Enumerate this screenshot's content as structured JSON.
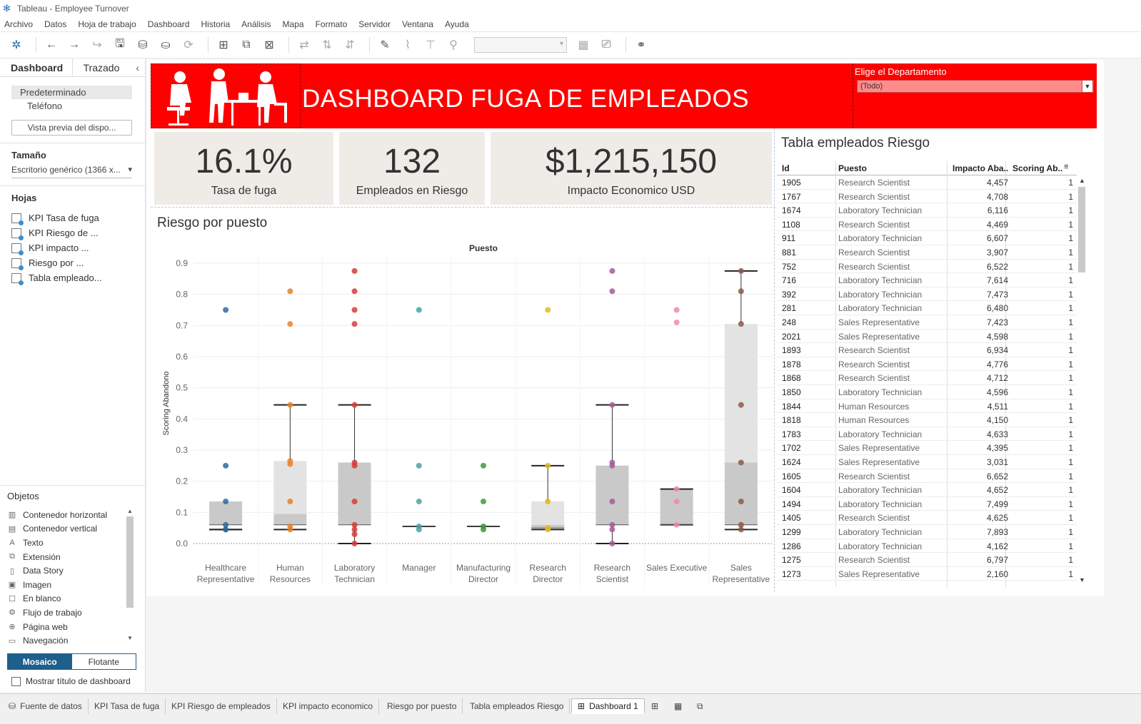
{
  "window": {
    "title": "Tableau - Employee Turnover"
  },
  "menu": [
    "Archivo",
    "Datos",
    "Hoja de trabajo",
    "Dashboard",
    "Historia",
    "Análisis",
    "Mapa",
    "Formato",
    "Servidor",
    "Ventana",
    "Ayuda"
  ],
  "left_panel": {
    "tabs": [
      "Dashboard",
      "Trazado"
    ],
    "devices": [
      "Predeterminado",
      "Teléfono"
    ],
    "preview_button": "Vista previa del dispo...",
    "size_title": "Tamaño",
    "size_value": "Escritorio genérico (1366 x...",
    "sheets_title": "Hojas",
    "sheets": [
      "KPI Tasa de fuga",
      "KPI Riesgo de ...",
      "KPI impacto ...",
      "Riesgo por ...",
      "Tabla empleado..."
    ],
    "objects_title": "Objetos",
    "objects": [
      {
        "label": "Contenedor horizontal",
        "icon": "horizontal-container-icon",
        "glyph": "▥"
      },
      {
        "label": "Contenedor vertical",
        "icon": "vertical-container-icon",
        "glyph": "▤"
      },
      {
        "label": "Texto",
        "icon": "text-icon",
        "glyph": "A"
      },
      {
        "label": "Extensión",
        "icon": "extension-icon",
        "glyph": "⧉"
      },
      {
        "label": "Data Story",
        "icon": "data-story-icon",
        "glyph": "▯"
      },
      {
        "label": "Imagen",
        "icon": "image-icon",
        "glyph": "▣"
      },
      {
        "label": "En blanco",
        "icon": "blank-icon",
        "glyph": "☐"
      },
      {
        "label": "Flujo de trabajo",
        "icon": "workflow-icon",
        "glyph": "⚙"
      },
      {
        "label": "Página web",
        "icon": "web-page-icon",
        "glyph": "⊕"
      },
      {
        "label": "Navegación",
        "icon": "navigation-icon",
        "glyph": "▭"
      }
    ],
    "layout_modes": [
      "Mosaico",
      "Flotante"
    ],
    "show_title_label": "Mostrar título de dashboard"
  },
  "dashboard": {
    "banner_title": "DASHBOARD FUGA DE EMPLEADOS",
    "filter_label": "Elige el Departamento",
    "filter_value": "(Todo)",
    "kpis": [
      {
        "value": "16.1%",
        "label": "Tasa de fuga"
      },
      {
        "value": "132",
        "label": "Empleados en Riesgo"
      },
      {
        "value": "$1,215,150",
        "label": "Impacto Economico USD"
      }
    ],
    "chart_title": "Riesgo por puesto",
    "table_title": "Tabla empleados Riesgo",
    "table_headers": [
      "Id",
      "Puesto",
      "Impacto Aba..",
      "Scoring Ab.."
    ],
    "table_rows": [
      [
        "1905",
        "Research Scientist",
        "4,457",
        "1"
      ],
      [
        "1767",
        "Research Scientist",
        "4,708",
        "1"
      ],
      [
        "1674",
        "Laboratory Technician",
        "6,116",
        "1"
      ],
      [
        "1108",
        "Research Scientist",
        "4,469",
        "1"
      ],
      [
        "911",
        "Laboratory Technician",
        "6,607",
        "1"
      ],
      [
        "881",
        "Research Scientist",
        "3,907",
        "1"
      ],
      [
        "752",
        "Research Scientist",
        "6,522",
        "1"
      ],
      [
        "716",
        "Laboratory Technician",
        "7,614",
        "1"
      ],
      [
        "392",
        "Laboratory Technician",
        "7,473",
        "1"
      ],
      [
        "281",
        "Laboratory Technician",
        "6,480",
        "1"
      ],
      [
        "248",
        "Sales Representative",
        "7,423",
        "1"
      ],
      [
        "2021",
        "Sales Representative",
        "4,598",
        "1"
      ],
      [
        "1893",
        "Research Scientist",
        "6,934",
        "1"
      ],
      [
        "1878",
        "Research Scientist",
        "4,776",
        "1"
      ],
      [
        "1868",
        "Research Scientist",
        "4,712",
        "1"
      ],
      [
        "1850",
        "Laboratory Technician",
        "4,596",
        "1"
      ],
      [
        "1844",
        "Human Resources",
        "4,511",
        "1"
      ],
      [
        "1818",
        "Human Resources",
        "4,150",
        "1"
      ],
      [
        "1783",
        "Laboratory Technician",
        "4,633",
        "1"
      ],
      [
        "1702",
        "Sales Representative",
        "4,395",
        "1"
      ],
      [
        "1624",
        "Sales Representative",
        "3,031",
        "1"
      ],
      [
        "1605",
        "Research Scientist",
        "6,652",
        "1"
      ],
      [
        "1604",
        "Laboratory Technician",
        "4,652",
        "1"
      ],
      [
        "1494",
        "Laboratory Technician",
        "7,499",
        "1"
      ],
      [
        "1405",
        "Research Scientist",
        "4,625",
        "1"
      ],
      [
        "1299",
        "Laboratory Technician",
        "7,893",
        "1"
      ],
      [
        "1286",
        "Laboratory Technician",
        "4,162",
        "1"
      ],
      [
        "1275",
        "Research Scientist",
        "6,797",
        "1"
      ],
      [
        "1273",
        "Sales Representative",
        "2,160",
        "1"
      ]
    ]
  },
  "bottom_tabs": [
    "Fuente de datos",
    "KPI Tasa de fuga",
    "KPI Riesgo de empleados",
    "KPI impacto economico",
    "Riesgo por puesto",
    "Tabla empleados Riesgo",
    "Dashboard 1"
  ],
  "chart_data": {
    "type": "box-plot with dots",
    "title": "Puesto",
    "xlabel": "Puesto",
    "ylabel": "Scoring Abandono",
    "ylim": [
      0,
      0.9
    ],
    "yticks": [
      "0.0",
      "0.1",
      "0.2",
      "0.3",
      "0.4",
      "0.5",
      "0.6",
      "0.7",
      "0.8",
      "0.9"
    ],
    "categories": [
      {
        "label": [
          "Healthcare",
          "Representative"
        ],
        "color": "#2e6a9e",
        "box": [
          0.045,
          0.06,
          0.135,
          0.135,
          0.045
        ],
        "points": [
          0.75,
          0.25,
          0.135,
          0.06,
          0.045,
          0.045
        ]
      },
      {
        "label": [
          "Human",
          "Resources"
        ],
        "color": "#e8832a",
        "box": [
          0.045,
          0.06,
          0.095,
          0.265,
          0.445
        ],
        "points": [
          0.81,
          0.705,
          0.445,
          0.265,
          0.255,
          0.135,
          0.055,
          0.045
        ]
      },
      {
        "label": [
          "Laboratory",
          "Technician"
        ],
        "color": "#d63b3b",
        "box": [
          0.0,
          0.06,
          0.26,
          0.26,
          0.445
        ],
        "points": [
          0.875,
          0.81,
          0.75,
          0.705,
          0.445,
          0.26,
          0.25,
          0.135,
          0.06,
          0.045,
          0.03,
          0.0
        ]
      },
      {
        "label": [
          "Manager",
          ""
        ],
        "color": "#4aa3a0",
        "box": [
          0.055,
          0.055,
          0.055,
          0.055,
          0.055
        ],
        "points": [
          0.75,
          0.25,
          0.135,
          0.055,
          0.045
        ]
      },
      {
        "label": [
          "Manufacturing",
          "Director"
        ],
        "color": "#3d9a3d",
        "box": [
          0.055,
          0.055,
          0.055,
          0.055,
          0.055
        ],
        "points": [
          0.25,
          0.135,
          0.055,
          0.045
        ]
      },
      {
        "label": [
          "Research",
          "Director"
        ],
        "color": "#e0b81b",
        "box": [
          0.045,
          0.05,
          0.06,
          0.135,
          0.25
        ],
        "points": [
          0.75,
          0.25,
          0.135,
          0.05,
          0.045
        ]
      },
      {
        "label": [
          "Research",
          "Scientist"
        ],
        "color": "#a55c9a",
        "box": [
          0.0,
          0.06,
          0.25,
          0.25,
          0.445
        ],
        "points": [
          0.875,
          0.81,
          0.445,
          0.26,
          0.25,
          0.135,
          0.06,
          0.045,
          0.0
        ]
      },
      {
        "label": [
          "Sales Executive",
          ""
        ],
        "color": "#f08ca1",
        "box": [
          0.06,
          0.06,
          0.175,
          0.175,
          0.175
        ],
        "points": [
          0.75,
          0.71,
          0.175,
          0.135,
          0.06
        ]
      },
      {
        "label": [
          "Sales",
          "Representative"
        ],
        "color": "#8c5a46",
        "box": [
          0.045,
          0.06,
          0.26,
          0.705,
          0.875
        ],
        "points": [
          0.875,
          0.81,
          0.705,
          0.445,
          0.26,
          0.135,
          0.06,
          0.045
        ]
      }
    ]
  }
}
